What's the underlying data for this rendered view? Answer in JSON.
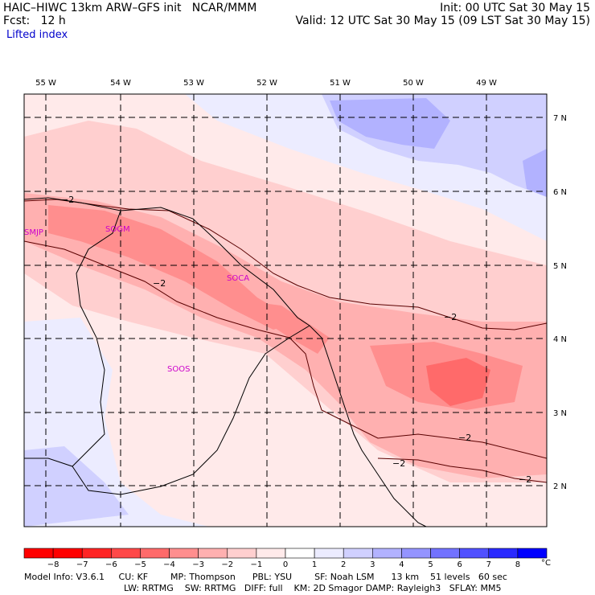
{
  "header": {
    "model_line": "HAIC–HIWC 13km ARW–GFS init   NCAR/MMM",
    "forecast_line": "Fcst:   12 h",
    "field_name": "Lifted index",
    "init_line": "Init: 00 UTC Sat 30 May 15",
    "valid_line": "Valid: 12 UTC Sat 30 May 15 (09 LST Sat 30 May 15)"
  },
  "map": {
    "lon_labels": [
      "55 W",
      "54 W",
      "53 W",
      "52 W",
      "51 W",
      "50 W",
      "49 W"
    ],
    "lat_labels": [
      "7 N",
      "6 N",
      "5 N",
      "4 N",
      "3 N",
      "2 N"
    ],
    "lon_range": [
      -55.3,
      -48.1
    ],
    "lat_range": [
      1.55,
      7.35
    ],
    "stations": [
      {
        "id": "SMJP",
        "lon": -55.3,
        "lat": 5.45
      },
      {
        "id": "SOGM",
        "lon": -54.1,
        "lat": 5.45
      },
      {
        "id": "SOCA",
        "lon": -52.35,
        "lat": 4.8
      },
      {
        "id": "SOOS",
        "lon": -53.5,
        "lat": 3.7
      }
    ],
    "contour_label": "−2"
  },
  "colorbar": {
    "ticks": [
      "−8",
      "−7",
      "−6",
      "−5",
      "−4",
      "−3",
      "−2",
      "−1",
      "0",
      "1",
      "2",
      "3",
      "4",
      "5",
      "6",
      "7",
      "8"
    ],
    "unit": "°C",
    "colors": [
      "#ff0000",
      "#ff2424",
      "#ff4848",
      "#ff6a6a",
      "#ff8e8e",
      "#ffb0b0",
      "#ffcfcf",
      "#ffeaea",
      "#ffffff",
      "#ececff",
      "#d0d0ff",
      "#b2b2ff",
      "#9494ff",
      "#7272ff",
      "#5050ff",
      "#2a2aff",
      "#0000ff"
    ]
  },
  "footer": {
    "line1": "Model Info: V3.6.1     CU: KF        MP: Thompson      PBL: YSU        SF: Noah LSM      13 km    51 levels   60 sec",
    "line2": "LW: RRTMG    SW: RRTMG   DIFF: full    KM: 2D Smagor DAMP: Rayleigh3   SFLAY: MM5"
  }
}
